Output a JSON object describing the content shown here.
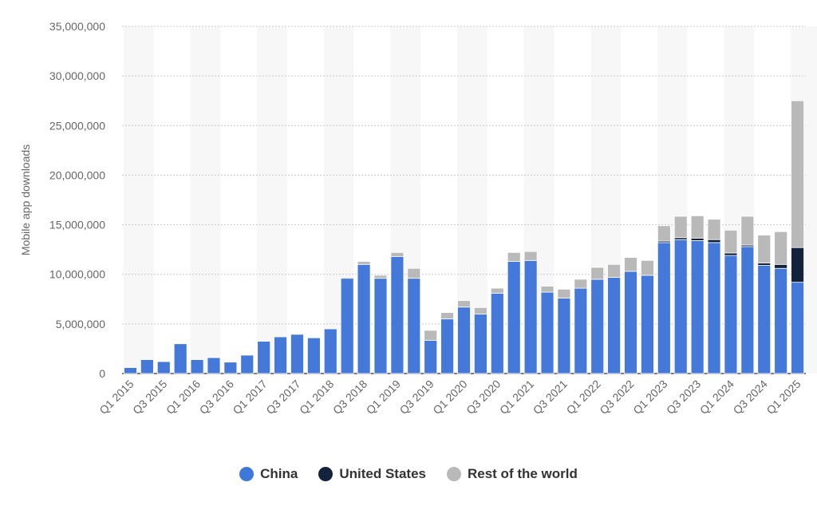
{
  "chart_data": {
    "type": "bar",
    "stacked": true,
    "ylabel": "Mobile app downloads",
    "ylim": [
      0,
      35000000
    ],
    "yticks": [
      0,
      5000000,
      10000000,
      15000000,
      20000000,
      25000000,
      30000000,
      35000000
    ],
    "ytick_labels": [
      "0",
      "5,000,000",
      "10,000,000",
      "15,000,000",
      "20,000,000",
      "25,000,000",
      "30,000,000",
      "35,000,000"
    ],
    "grid": "horizontal dotted",
    "legend_position": "bottom-center",
    "categories": [
      "Q1 2015",
      "Q2 2015",
      "Q3 2015",
      "Q4 2015",
      "Q1 2016",
      "Q2 2016",
      "Q3 2016",
      "Q4 2016",
      "Q1 2017",
      "Q2 2017",
      "Q3 2017",
      "Q4 2017",
      "Q1 2018",
      "Q2 2018",
      "Q3 2018",
      "Q4 2018",
      "Q1 2019",
      "Q2 2019",
      "Q3 2019",
      "Q4 2019",
      "Q1 2020",
      "Q2 2020",
      "Q3 2020",
      "Q4 2020",
      "Q1 2021",
      "Q2 2021",
      "Q3 2021",
      "Q4 2021",
      "Q1 2022",
      "Q2 2022",
      "Q3 2022",
      "Q4 2022",
      "Q1 2023",
      "Q2 2023",
      "Q3 2023",
      "Q4 2023",
      "Q1 2024",
      "Q2 2024",
      "Q3 2024",
      "Q4 2024",
      "Q1 2025"
    ],
    "series": [
      {
        "name": "China",
        "color": "#4479d9",
        "values": [
          600000,
          1400000,
          1200000,
          3000000,
          1400000,
          1600000,
          1150000,
          1850000,
          3250000,
          3700000,
          3950000,
          3600000,
          4500000,
          9600000,
          11000000,
          9600000,
          11800000,
          9600000,
          3350000,
          5500000,
          6700000,
          6000000,
          8100000,
          11300000,
          11400000,
          8200000,
          7600000,
          8600000,
          9500000,
          9700000,
          10300000,
          9900000,
          13200000,
          13500000,
          13400000,
          13200000,
          11900000,
          12800000,
          10900000,
          10600000,
          9200000
        ]
      },
      {
        "name": "United States",
        "color": "#14233c",
        "values": [
          0,
          0,
          0,
          0,
          0,
          0,
          0,
          0,
          0,
          0,
          0,
          0,
          0,
          0,
          0,
          0,
          0,
          0,
          0,
          0,
          0,
          0,
          0,
          0,
          0,
          0,
          0,
          0,
          0,
          0,
          0,
          0,
          150000,
          200000,
          250000,
          300000,
          250000,
          150000,
          250000,
          400000,
          3500000
        ]
      },
      {
        "name": "Rest of the world",
        "color": "#b9b9b9",
        "values": [
          0,
          0,
          0,
          0,
          0,
          0,
          0,
          0,
          0,
          0,
          0,
          0,
          0,
          100000,
          300000,
          300000,
          400000,
          1000000,
          1000000,
          650000,
          650000,
          650000,
          500000,
          900000,
          900000,
          600000,
          900000,
          900000,
          1200000,
          1300000,
          1400000,
          1500000,
          1550000,
          2150000,
          2250000,
          2050000,
          2300000,
          2900000,
          2800000,
          3300000,
          14800000
        ]
      }
    ]
  }
}
